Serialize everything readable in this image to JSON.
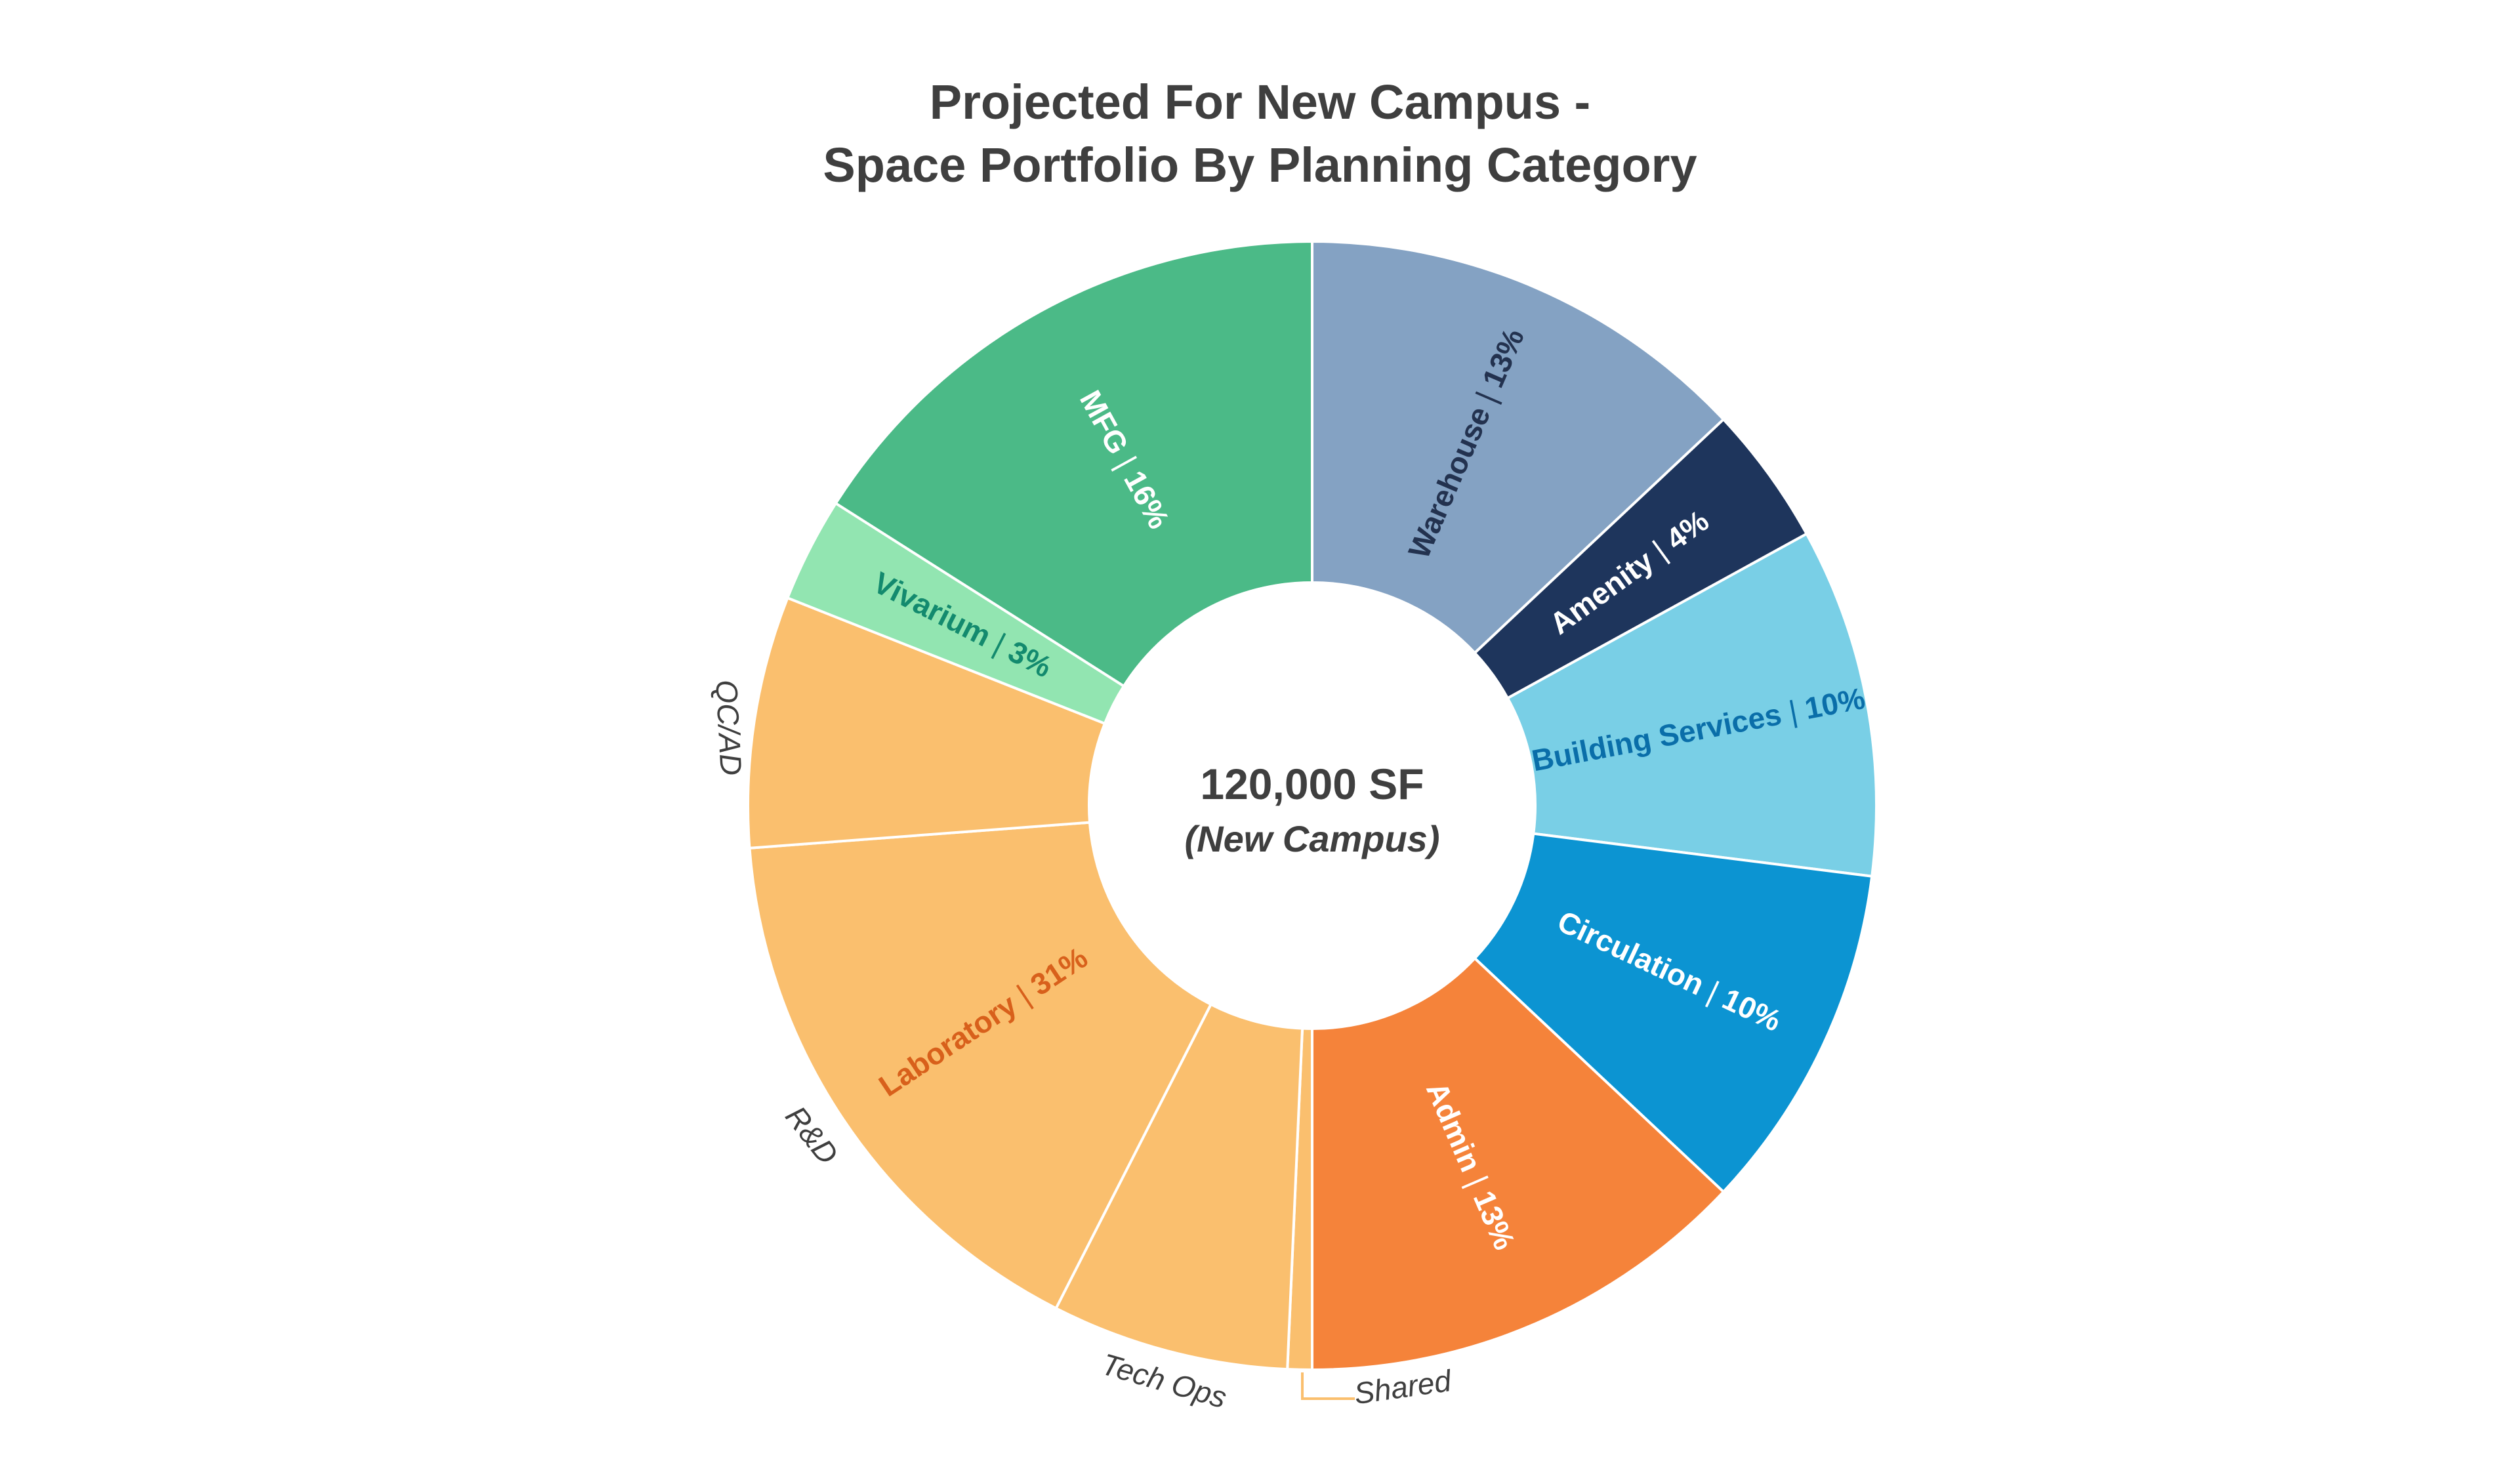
{
  "chart_data": {
    "type": "pie",
    "title_lines": [
      "Projected For New Campus -",
      "Space Portfolio By Planning Category"
    ],
    "center": {
      "value": "120,000 SF",
      "caption": "(New Campus)"
    },
    "slices": [
      {
        "label": "Warehouse | 13%",
        "value": 13,
        "color": "#84a2c3",
        "text_color": "#23324f"
      },
      {
        "label": "Amenity | 4%",
        "value": 4,
        "color": "#1e355c",
        "text_color": "#ffffff"
      },
      {
        "label": "Building Services | 10%",
        "value": 10,
        "color": "#79cfe6",
        "text_color": "#0a6ea9"
      },
      {
        "label": "Circulation | 10%",
        "value": 10,
        "color": "#0c94d2",
        "text_color": "#ffffff"
      },
      {
        "label": "Admin | 13%",
        "value": 13,
        "color": "#f5833a",
        "text_color": "#ffffff"
      },
      {
        "label": "",
        "value": 0.7,
        "color": "#fabf6e",
        "text_color": "#d8601b"
      },
      {
        "label": "",
        "value": 6.8,
        "color": "#fabf6e",
        "text_color": "#d8601b"
      },
      {
        "label": "Laboratory | 31%",
        "value": 16.3,
        "color": "#fabf6e",
        "text_color": "#d8601b"
      },
      {
        "label": "",
        "value": 7.2,
        "color": "#fabf6e",
        "text_color": "#d8601b"
      },
      {
        "label": "Vivarium | 3%",
        "value": 3,
        "color": "#92e5b1",
        "text_color": "#138a6e"
      },
      {
        "label": "MFG | 16%",
        "value": 16,
        "color": "#4bba87",
        "text_color": "#ffffff"
      }
    ],
    "outer_labels": [
      "Shared",
      "Tech Ops",
      "R&D",
      "QC/AD"
    ]
  }
}
